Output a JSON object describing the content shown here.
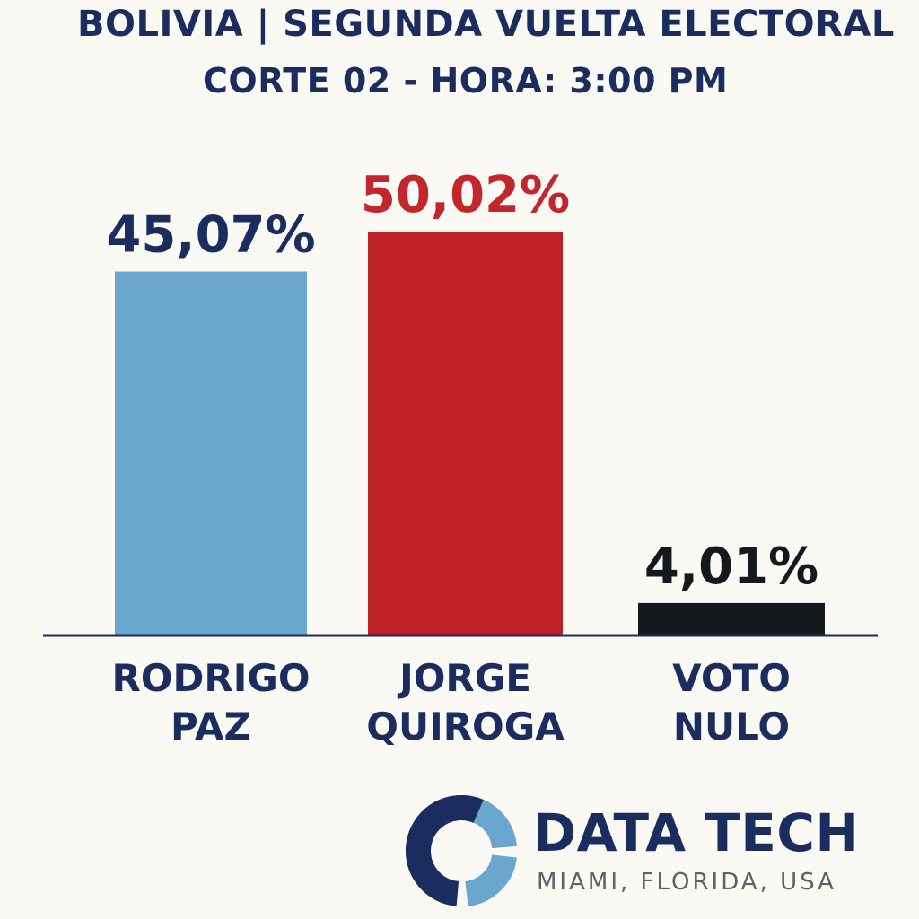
{
  "header": {
    "title": "BOLIVIA | SEGUNDA VUELTA ELECTORAL",
    "subtitle": "CORTE 02 - HORA: 3:00 PM"
  },
  "chart_data": {
    "type": "bar",
    "categories": [
      [
        "RODRIGO",
        "PAZ"
      ],
      [
        "JORGE",
        "QUIROGA"
      ],
      [
        "VOTO",
        "NULO"
      ]
    ],
    "values": [
      45.07,
      50.02,
      4.01
    ],
    "value_labels": [
      "45,07%",
      "50,02%",
      "4,01%"
    ],
    "colors": [
      "#6aa6cd",
      "#bd2027",
      "#15181d"
    ],
    "label_colors": [
      "#1b2d5e",
      "#c1272d",
      "#15181d"
    ],
    "ylim": [
      0,
      50.02
    ],
    "grid": false,
    "legend": "none"
  },
  "brand": {
    "name": "DATA TECH",
    "location": "MIAMI, FLORIDA, USA",
    "logo_icon": "ring-logo-icon",
    "colors": {
      "primary": "#1b2d5e",
      "accent": "#6aa6cd"
    }
  }
}
